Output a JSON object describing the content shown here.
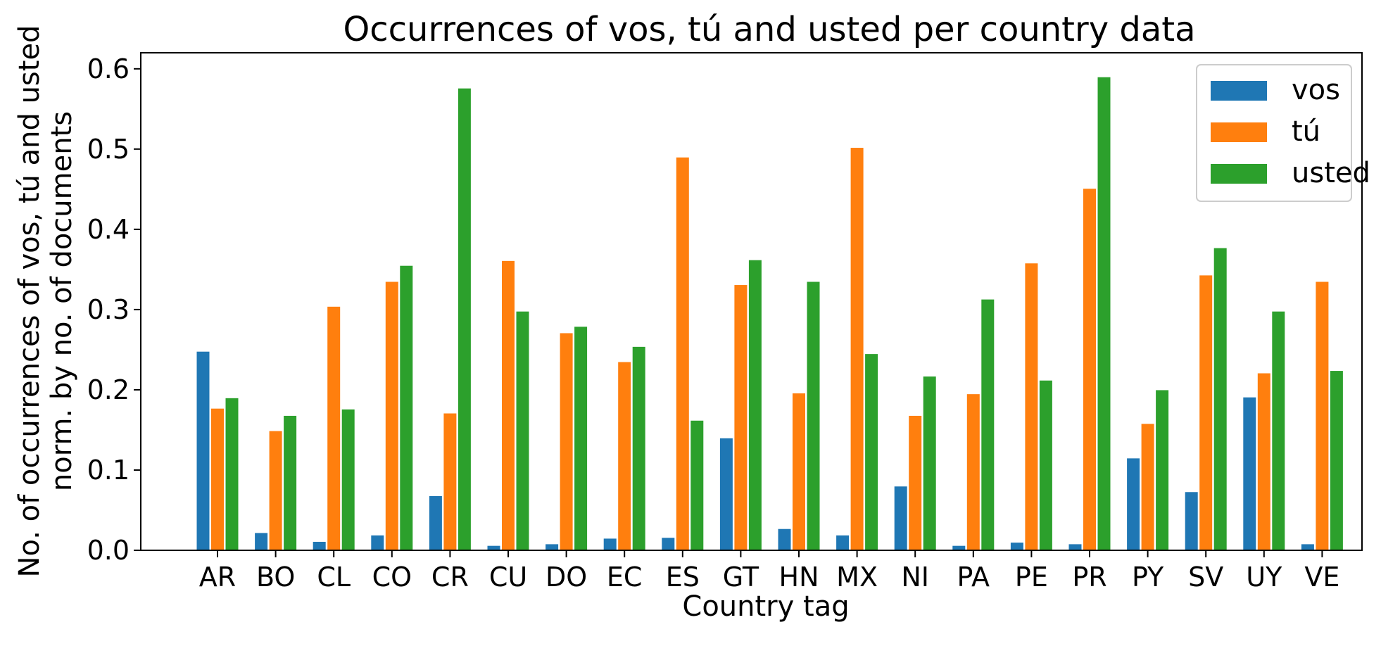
{
  "chart_data": {
    "type": "bar",
    "title": "Occurrences of vos, tú and usted per country data",
    "xlabel": "Country tag",
    "ylabel_lines": [
      "No. of occurrences of vos, tú and usted",
      "norm. by no. of documents"
    ],
    "categories": [
      "AR",
      "BO",
      "CL",
      "CO",
      "CR",
      "CU",
      "DO",
      "EC",
      "ES",
      "GT",
      "HN",
      "MX",
      "NI",
      "PA",
      "PE",
      "PR",
      "PY",
      "SV",
      "UY",
      "VE"
    ],
    "ylim": [
      0,
      0.62
    ],
    "yticks": [
      "0.0",
      "0.1",
      "0.2",
      "0.3",
      "0.4",
      "0.5",
      "0.6"
    ],
    "grid": false,
    "legend_position": "top-right",
    "series": [
      {
        "name": "vos",
        "color": "#1f77b4",
        "values": [
          0.248,
          0.022,
          0.011,
          0.019,
          0.068,
          0.006,
          0.008,
          0.015,
          0.016,
          0.14,
          0.027,
          0.019,
          0.08,
          0.006,
          0.01,
          0.008,
          0.115,
          0.073,
          0.191,
          0.008
        ]
      },
      {
        "name": "tú",
        "color": "#ff7f0e",
        "values": [
          0.177,
          0.149,
          0.304,
          0.335,
          0.171,
          0.361,
          0.271,
          0.235,
          0.49,
          0.331,
          0.196,
          0.502,
          0.168,
          0.195,
          0.358,
          0.451,
          0.158,
          0.343,
          0.221,
          0.335
        ]
      },
      {
        "name": "usted",
        "color": "#2ca02c",
        "values": [
          0.19,
          0.168,
          0.176,
          0.355,
          0.576,
          0.298,
          0.279,
          0.254,
          0.162,
          0.362,
          0.335,
          0.245,
          0.217,
          0.313,
          0.212,
          0.59,
          0.2,
          0.377,
          0.298,
          0.224
        ]
      }
    ]
  }
}
